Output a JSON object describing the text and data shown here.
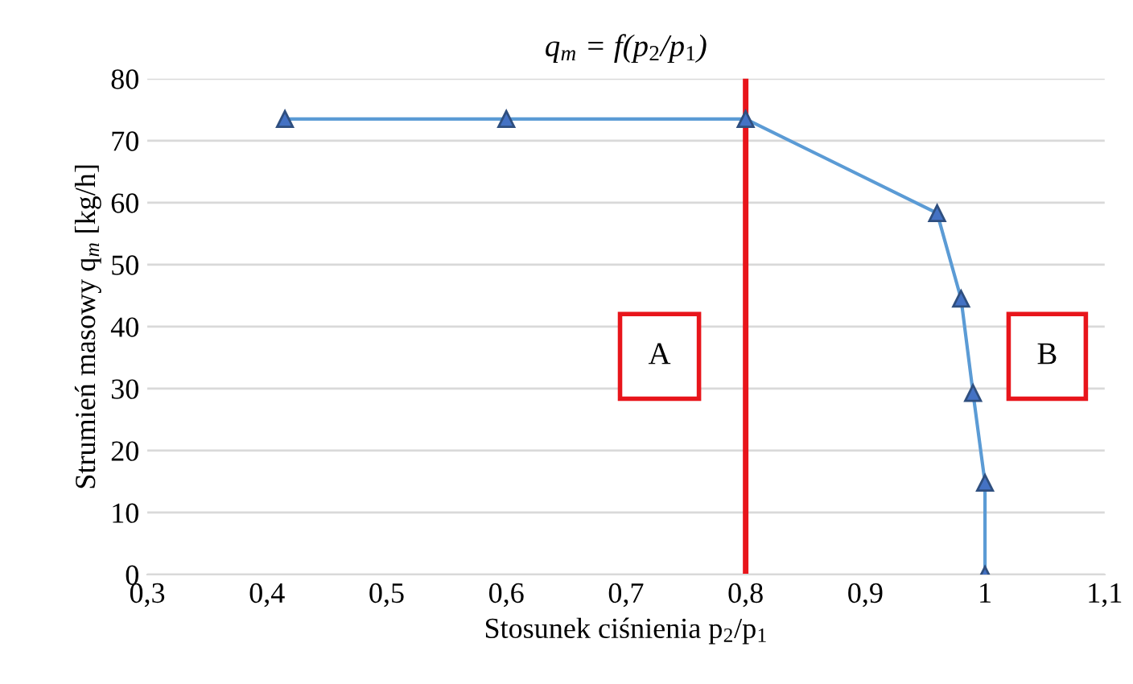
{
  "chart_data": {
    "type": "line",
    "title": "q$_{m}$ = f(p$_{2}$/p$_{1}$)",
    "xlabel": "Stosunek ciśnienia p$_{2}$/p$_{1}$",
    "ylabel": "Strumień masowy q$_{m}$ [kg/h]",
    "x": [
      0.415,
      0.6,
      0.8,
      0.96,
      0.98,
      0.99,
      1.0,
      1.0
    ],
    "series": [
      {
        "color": "#5b9bd5",
        "values": [
          73.5,
          73.5,
          73.5,
          58.3,
          44.5,
          29.3,
          14.8,
          0
        ]
      }
    ],
    "marker": "triangle",
    "grid": "y",
    "xlim": [
      0.3,
      1.1
    ],
    "xticks": [
      {
        "value": 0.3,
        "label": "0,3"
      },
      {
        "value": 0.4,
        "label": "0,4"
      },
      {
        "value": 0.5,
        "label": "0,5"
      },
      {
        "value": 0.6,
        "label": "0,6"
      },
      {
        "value": 0.7,
        "label": "0,7"
      },
      {
        "value": 0.8,
        "label": "0,8"
      },
      {
        "value": 0.9,
        "label": "0,9"
      },
      {
        "value": 1,
        "label": "1"
      },
      {
        "value": 1.1,
        "label": "1,1"
      }
    ],
    "ylim": [
      0,
      80
    ],
    "yticks": [
      0,
      10,
      20,
      30,
      40,
      50,
      60,
      70,
      80
    ],
    "ref_lines": [
      {
        "axis": "x",
        "value": 0.8,
        "color": "#e8151b"
      }
    ],
    "annotations": [
      "A",
      "B"
    ]
  }
}
